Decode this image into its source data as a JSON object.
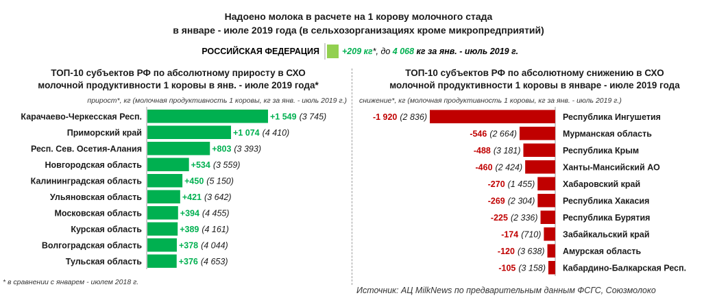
{
  "title_line1": "Надоено молока в расчете на 1 корову молочного стада",
  "title_line2": "в январе - июле 2019 года (в сельхозорганизациях кроме микропредприятий)",
  "federation": {
    "label": "РОССИЙСКАЯ ФЕДЕРАЦИЯ",
    "delta": "+209 кг",
    "delta_mark": "*",
    "mid_text": ", до ",
    "total": "4 068",
    "tail_text": " кг за янв. - июль 2019 г.",
    "color": "#92d050"
  },
  "footnote": "* в сравнении с январем - июлем 2018 г.",
  "source": "Источник: АЦ MilkNews по предварительным данным ФСГС, Союзмолоко",
  "colors": {
    "increase": "#00b050",
    "decrease": "#c00000",
    "divider": "#9a9a9a"
  },
  "chart_data": [
    {
      "type": "bar",
      "orientation": "horizontal",
      "title": "ТОП-10 субъектов РФ по абсолютному приросту в СХО молочной продуктивности 1 коровы в янв. - июле 2019 года*",
      "title_line1": "ТОП-10 субъектов РФ по абсолютному приросту в СХО",
      "title_line2": "молочной продуктивности 1 коровы в янв. - июле 2019 года*",
      "note": "прирост*, кг (молочная продуктивность 1 коровы, кг за янв. - июль 2019 г.)",
      "categories": [
        "Карачаево-Черкесская Респ.",
        "Приморский край",
        "Респ. Сев. Осетия-Алания",
        "Новгородская область",
        "Калининградская область",
        "Ульяновская область",
        "Московская область",
        "Курская область",
        "Волгоградская область",
        "Тульская область"
      ],
      "values": [
        1549,
        1074,
        803,
        534,
        450,
        421,
        394,
        389,
        378,
        376
      ],
      "value_labels": [
        "+1 549",
        "+1 074",
        "+803",
        "+534",
        "+450",
        "+421",
        "+394",
        "+389",
        "+378",
        "+376"
      ],
      "totals": [
        "(3 745)",
        "(4 410)",
        "(3 393)",
        "(3 559)",
        "(5 150)",
        "(3 642)",
        "(4 455)",
        "(4 161)",
        "(4 044)",
        "(4 653)"
      ],
      "color": "#00b050"
    },
    {
      "type": "bar",
      "orientation": "horizontal",
      "title": "ТОП-10 субъектов РФ по абсолютному снижению в СХО молочной продуктивности 1 коровы в январе - июле 2019 года",
      "title_line1": "ТОП-10 субъектов РФ по абсолютному снижению в СХО",
      "title_line2": "молочной продуктивности 1 коровы в январе - июле 2019 года",
      "note": "снижение*, кг (молочная продуктивность 1 коровы, кг за янв. - июль 2019 г.)",
      "categories": [
        "Республика Ингушетия",
        "Мурманская область",
        "Республика Крым",
        "Ханты-Мансийский АО",
        "Хабаровский край",
        "Республика Хакасия",
        "Республика Бурятия",
        "Забайкальский край",
        "Амурская область",
        "Кабардино-Балкарская Респ."
      ],
      "values": [
        -1920,
        -546,
        -488,
        -460,
        -270,
        -269,
        -225,
        -174,
        -120,
        -105
      ],
      "value_labels": [
        "-1 920",
        "-546",
        "-488",
        "-460",
        "-270",
        "-269",
        "-225",
        "-174",
        "-120",
        "-105"
      ],
      "totals": [
        "(2 836)",
        "(2 664)",
        "(3 181)",
        "(2 424)",
        "(1 455)",
        "(2 304)",
        "(2 336)",
        "(710)",
        "(3 638)",
        "(3 158)"
      ],
      "color": "#c00000"
    }
  ]
}
